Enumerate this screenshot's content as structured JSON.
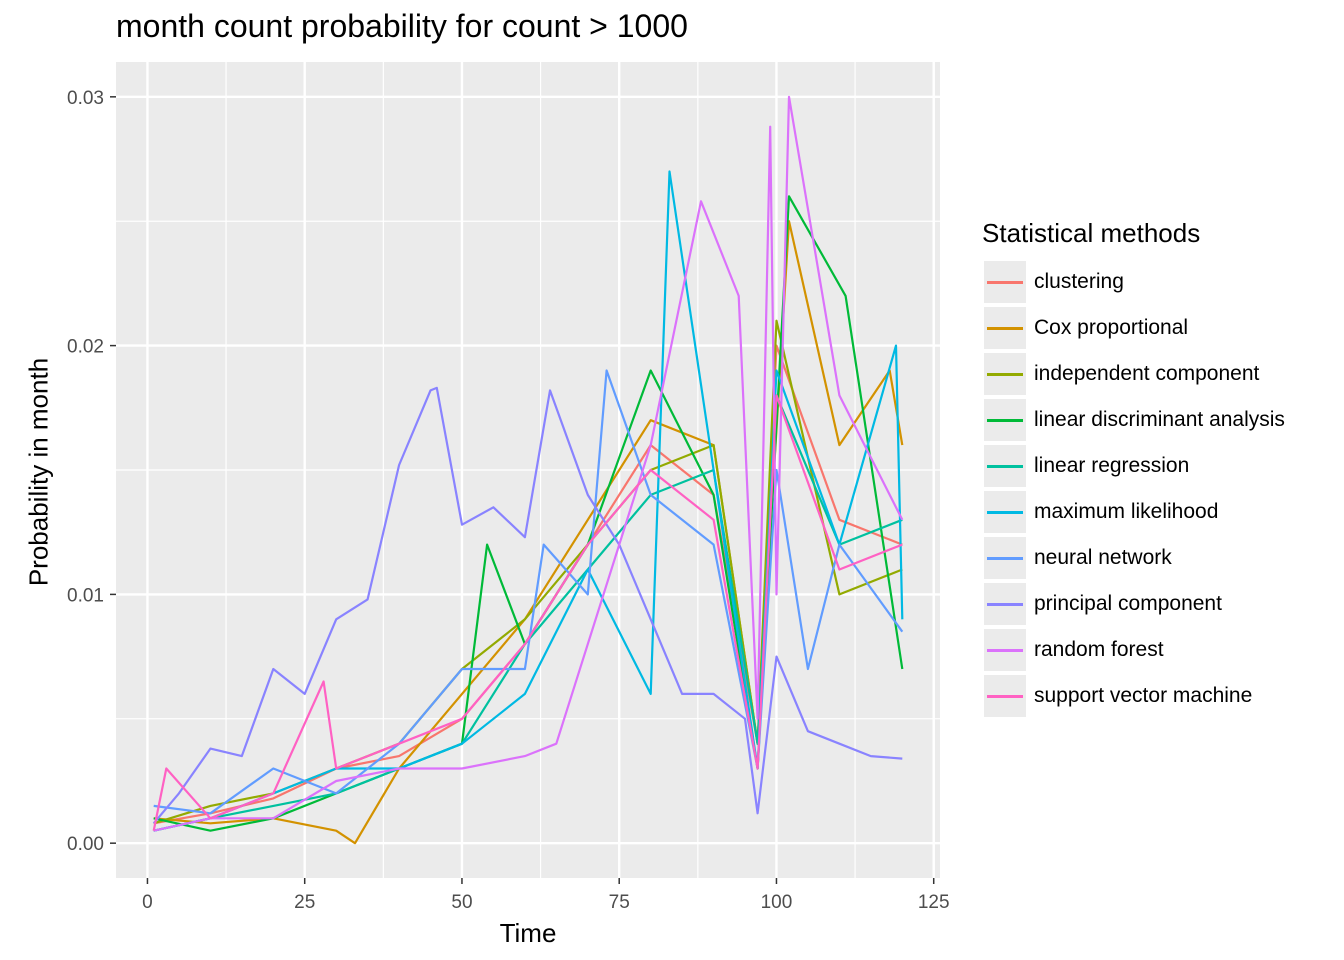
{
  "chart_data": {
    "type": "line",
    "title": "month count probability for count > 1000",
    "xlabel": "Time",
    "ylabel": "Probability in month",
    "xlim": [
      -5,
      126
    ],
    "ylim": [
      -0.0014,
      0.0314
    ],
    "x_ticks": [
      0,
      25,
      50,
      75,
      100,
      125
    ],
    "y_ticks": [
      0.0,
      0.01,
      0.02,
      0.03
    ],
    "x_tick_labels": [
      "0",
      "25",
      "50",
      "75",
      "100",
      "125"
    ],
    "y_tick_labels": [
      "0.00",
      "0.01",
      "0.02",
      "0.03"
    ],
    "grid": true,
    "legend_title": "Statistical methods",
    "legend_position": "right",
    "series": [
      {
        "name": "clustering",
        "color": "#F8766D",
        "x": [
          1,
          10,
          20,
          30,
          40,
          50,
          60,
          70,
          80,
          90,
          97,
          100,
          110,
          120
        ],
        "values": [
          0.0008,
          0.0012,
          0.0018,
          0.003,
          0.0035,
          0.005,
          0.008,
          0.012,
          0.016,
          0.014,
          0.004,
          0.02,
          0.013,
          0.012
        ]
      },
      {
        "name": "Cox proportional",
        "color": "#D39200",
        "x": [
          1,
          10,
          20,
          30,
          33,
          40,
          50,
          60,
          70,
          80,
          90,
          97,
          102,
          110,
          118,
          120
        ],
        "values": [
          0.001,
          0.0008,
          0.001,
          0.0005,
          0.0,
          0.003,
          0.006,
          0.009,
          0.013,
          0.017,
          0.016,
          0.004,
          0.025,
          0.016,
          0.019,
          0.016
        ]
      },
      {
        "name": "independent component",
        "color": "#93AA00",
        "x": [
          1,
          10,
          20,
          30,
          40,
          50,
          60,
          70,
          80,
          90,
          97,
          100,
          110,
          120
        ],
        "values": [
          0.0008,
          0.0015,
          0.002,
          0.003,
          0.004,
          0.007,
          0.009,
          0.012,
          0.015,
          0.016,
          0.004,
          0.021,
          0.01,
          0.011
        ]
      },
      {
        "name": "linear discriminant analysis",
        "color": "#00BA38",
        "x": [
          1,
          10,
          20,
          30,
          40,
          50,
          54,
          60,
          70,
          80,
          90,
          97,
          102,
          111,
          120
        ],
        "values": [
          0.001,
          0.0005,
          0.001,
          0.002,
          0.003,
          0.004,
          0.012,
          0.008,
          0.012,
          0.019,
          0.014,
          0.003,
          0.026,
          0.022,
          0.007
        ]
      },
      {
        "name": "linear regression",
        "color": "#00C19F",
        "x": [
          1,
          10,
          20,
          30,
          40,
          50,
          60,
          70,
          80,
          90,
          97,
          100,
          110,
          120
        ],
        "values": [
          0.0005,
          0.001,
          0.0015,
          0.002,
          0.003,
          0.004,
          0.008,
          0.011,
          0.014,
          0.015,
          0.004,
          0.018,
          0.012,
          0.013
        ]
      },
      {
        "name": "maximum likelihood",
        "color": "#00B9E3",
        "x": [
          1,
          10,
          20,
          30,
          40,
          50,
          60,
          70,
          80,
          83,
          90,
          97,
          100,
          110,
          119,
          120
        ],
        "values": [
          0.0005,
          0.001,
          0.002,
          0.003,
          0.003,
          0.004,
          0.006,
          0.011,
          0.006,
          0.027,
          0.015,
          0.003,
          0.019,
          0.012,
          0.02,
          0.009
        ]
      },
      {
        "name": "neural network",
        "color": "#619CFF",
        "x": [
          1,
          10,
          20,
          30,
          40,
          50,
          60,
          63,
          70,
          73,
          80,
          90,
          97,
          100,
          105,
          110,
          120
        ],
        "values": [
          0.0015,
          0.0012,
          0.003,
          0.002,
          0.004,
          0.007,
          0.007,
          0.012,
          0.01,
          0.019,
          0.014,
          0.012,
          0.003,
          0.015,
          0.007,
          0.012,
          0.0085
        ]
      },
      {
        "name": "principal component",
        "color": "#8983FF",
        "x": [
          1,
          5,
          10,
          15,
          20,
          25,
          30,
          35,
          40,
          45,
          46,
          50,
          55,
          60,
          64,
          70,
          75,
          80,
          85,
          90,
          95,
          97,
          100,
          105,
          110,
          115,
          120
        ],
        "values": [
          0.0008,
          0.002,
          0.0038,
          0.0035,
          0.007,
          0.006,
          0.009,
          0.0098,
          0.0152,
          0.0182,
          0.0183,
          0.0128,
          0.0135,
          0.0123,
          0.0182,
          0.014,
          0.012,
          0.009,
          0.006,
          0.006,
          0.005,
          0.0012,
          0.0075,
          0.0045,
          0.004,
          0.0035,
          0.0034
        ]
      },
      {
        "name": "random forest",
        "color": "#DB72FB",
        "x": [
          1,
          10,
          20,
          30,
          40,
          50,
          60,
          65,
          70,
          80,
          88,
          94,
          97,
          99,
          100,
          102,
          110,
          120
        ],
        "values": [
          0.0005,
          0.001,
          0.001,
          0.0025,
          0.003,
          0.003,
          0.0035,
          0.004,
          0.008,
          0.016,
          0.0258,
          0.022,
          0.005,
          0.0288,
          0.01,
          0.03,
          0.018,
          0.013
        ]
      },
      {
        "name": "support vector machine",
        "color": "#FF61C3",
        "x": [
          1,
          3,
          10,
          20,
          28,
          30,
          40,
          50,
          60,
          70,
          80,
          90,
          97,
          100,
          110,
          120
        ],
        "values": [
          0.0005,
          0.003,
          0.001,
          0.002,
          0.0065,
          0.003,
          0.004,
          0.005,
          0.008,
          0.012,
          0.015,
          0.013,
          0.003,
          0.018,
          0.011,
          0.012
        ]
      }
    ]
  }
}
